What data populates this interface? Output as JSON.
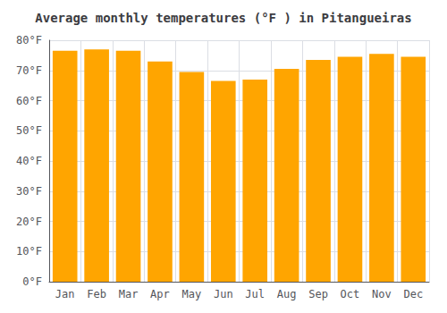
{
  "chart_data": {
    "type": "bar",
    "title": "Average monthly temperatures (°F ) in Pitangueiras",
    "categories": [
      "Jan",
      "Feb",
      "Mar",
      "Apr",
      "May",
      "Jun",
      "Jul",
      "Aug",
      "Sep",
      "Oct",
      "Nov",
      "Dec"
    ],
    "values": [
      76.5,
      77.0,
      76.5,
      73.0,
      69.5,
      66.5,
      67.0,
      70.5,
      73.5,
      74.5,
      75.5,
      74.5
    ],
    "color": "#FFA500",
    "ylim": [
      0,
      80
    ],
    "yticks": [
      {
        "value": 0,
        "label": "0°F"
      },
      {
        "value": 10,
        "label": "10°F"
      },
      {
        "value": 20,
        "label": "20°F"
      },
      {
        "value": 30,
        "label": "30°F"
      },
      {
        "value": 40,
        "label": "40°F"
      },
      {
        "value": 50,
        "label": "50°F"
      },
      {
        "value": 60,
        "label": "60°F"
      },
      {
        "value": 70,
        "label": "70°F"
      },
      {
        "value": 80,
        "label": "80°F"
      }
    ],
    "grid": true
  }
}
